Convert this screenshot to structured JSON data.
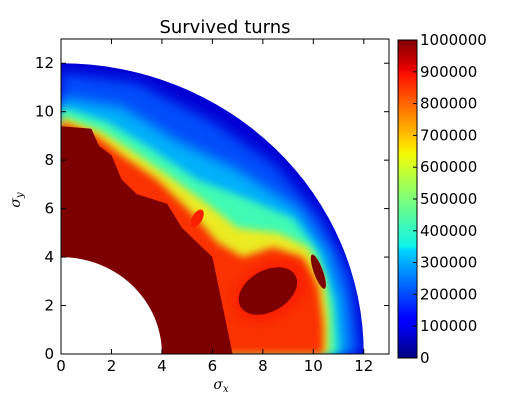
{
  "chart_data": {
    "type": "heatmap",
    "title": "Survived turns",
    "xlabel": "σ",
    "xlabel_sub": "x",
    "ylabel": "σ",
    "ylabel_sub": "y",
    "xlim": [
      0,
      13
    ],
    "ylim": [
      0,
      13
    ],
    "xticks": [
      0,
      2,
      4,
      6,
      8,
      10,
      12
    ],
    "yticks": [
      0,
      2,
      4,
      6,
      8,
      10,
      12
    ],
    "x_tick_labels": [
      "0",
      "2",
      "4",
      "6",
      "8",
      "10",
      "12"
    ],
    "y_tick_labels": [
      "0",
      "2",
      "4",
      "6",
      "8",
      "10",
      "12"
    ],
    "domain": {
      "shape": "quarter-annulus",
      "r_min": 4,
      "r_max": 12
    },
    "colormap": "jet",
    "colorbar": {
      "range": [
        0,
        1000000
      ],
      "ticks": [
        0,
        100000,
        200000,
        300000,
        400000,
        500000,
        600000,
        700000,
        800000,
        900000,
        1000000
      ],
      "tick_labels": [
        "0",
        "100000",
        "200000",
        "300000",
        "400000",
        "500000",
        "600000",
        "700000",
        "800000",
        "900000",
        "1000000"
      ]
    },
    "regions": [
      {
        "name": "",
        "description_value": 1000000
      },
      {
        "name": "",
        "description_value": 50000
      }
    ]
  }
}
